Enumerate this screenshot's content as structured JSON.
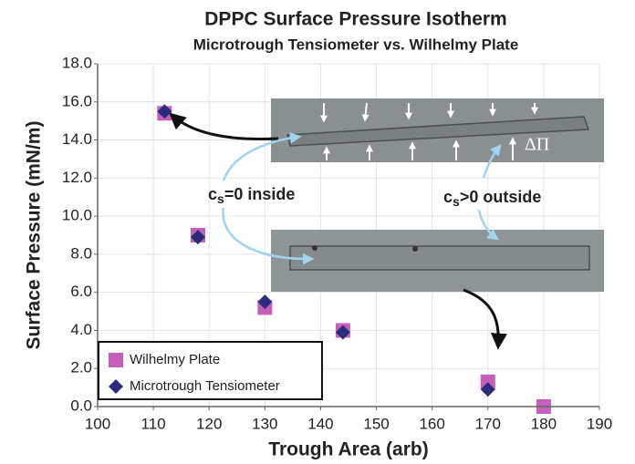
{
  "chart_data": {
    "type": "scatter",
    "title": "DPPC Surface Pressure Isotherm",
    "subtitle": "Microtrough Tensiometer vs. Wilhelmy Plate",
    "x_label": "Trough Area (arb)",
    "y_label": "Surface Pressure (mN/m)",
    "xlim": [
      100,
      190
    ],
    "xticks": [
      100,
      110,
      120,
      130,
      140,
      150,
      160,
      170,
      180,
      190
    ],
    "ylim": [
      0,
      18
    ],
    "yticks": [
      {
        "value": 0,
        "label": "0.0"
      },
      {
        "value": 2,
        "label": "2.0"
      },
      {
        "value": 4,
        "label": "4.0"
      },
      {
        "value": 6,
        "label": "6.0"
      },
      {
        "value": 8,
        "label": "8.0"
      },
      {
        "value": 10,
        "label": "10.0"
      },
      {
        "value": 12,
        "label": "12.0"
      },
      {
        "value": 14,
        "label": "14.0"
      },
      {
        "value": 16,
        "label": "16.0"
      },
      {
        "value": 18,
        "label": "18.0"
      }
    ],
    "grid": true,
    "legend": "bottom-left",
    "series": [
      {
        "name": "Wilhelmy Plate",
        "color": "#c65fb9",
        "marker": "square",
        "x": [
          112,
          118,
          130,
          144,
          170,
          180
        ],
        "values": [
          15.4,
          9.0,
          5.2,
          4.0,
          1.3,
          0.0
        ]
      },
      {
        "name": "Microtrough Tensiometer",
        "color": "#2b2c7c",
        "marker": "diamond",
        "x": [
          112,
          118,
          130,
          144,
          170
        ],
        "values": [
          15.5,
          8.9,
          5.5,
          3.9,
          0.9
        ]
      }
    ],
    "annotations": {
      "inside": [
        "c",
        "s",
        "=0 inside"
      ],
      "outside": [
        "c",
        "s",
        ">0 outside"
      ],
      "delta": "ΔΠ"
    }
  }
}
